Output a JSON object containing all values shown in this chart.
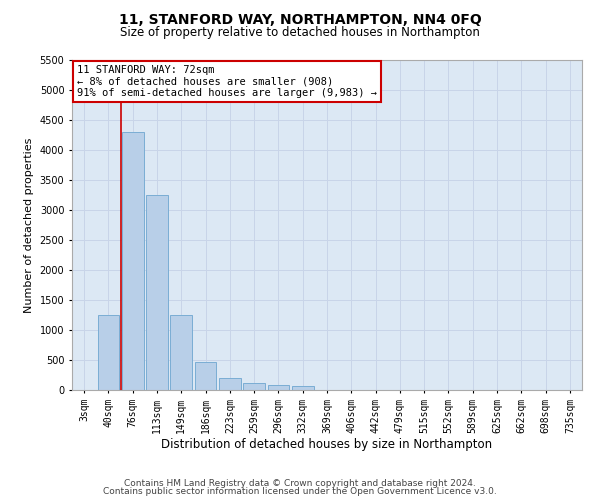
{
  "title": "11, STANFORD WAY, NORTHAMPTON, NN4 0FQ",
  "subtitle": "Size of property relative to detached houses in Northampton",
  "xlabel": "Distribution of detached houses by size in Northampton",
  "ylabel": "Number of detached properties",
  "footer_line1": "Contains HM Land Registry data © Crown copyright and database right 2024.",
  "footer_line2": "Contains public sector information licensed under the Open Government Licence v3.0.",
  "bar_labels": [
    "3sqm",
    "40sqm",
    "76sqm",
    "113sqm",
    "149sqm",
    "186sqm",
    "223sqm",
    "259sqm",
    "296sqm",
    "332sqm",
    "369sqm",
    "406sqm",
    "442sqm",
    "479sqm",
    "515sqm",
    "552sqm",
    "589sqm",
    "625sqm",
    "662sqm",
    "698sqm",
    "735sqm"
  ],
  "bar_values": [
    0,
    1250,
    4300,
    3250,
    1250,
    475,
    200,
    110,
    80,
    75,
    0,
    0,
    0,
    0,
    0,
    0,
    0,
    0,
    0,
    0,
    0
  ],
  "bar_color": "#b8cfe8",
  "bar_edge_color": "#7aadd4",
  "vline_x_index": 1,
  "vline_color": "#cc0000",
  "vline_linewidth": 1.2,
  "annotation_text": "11 STANFORD WAY: 72sqm\n← 8% of detached houses are smaller (908)\n91% of semi-detached houses are larger (9,983) →",
  "annotation_box_color": "#ffffff",
  "annotation_box_edge": "#cc0000",
  "ylim": [
    0,
    5500
  ],
  "yticks": [
    0,
    500,
    1000,
    1500,
    2000,
    2500,
    3000,
    3500,
    4000,
    4500,
    5000,
    5500
  ],
  "grid_color": "#c8d4e8",
  "background_color": "#dce8f4",
  "title_fontsize": 10,
  "subtitle_fontsize": 8.5,
  "xlabel_fontsize": 8.5,
  "ylabel_fontsize": 8,
  "tick_fontsize": 7,
  "annotation_fontsize": 7.5,
  "footer_fontsize": 6.5
}
